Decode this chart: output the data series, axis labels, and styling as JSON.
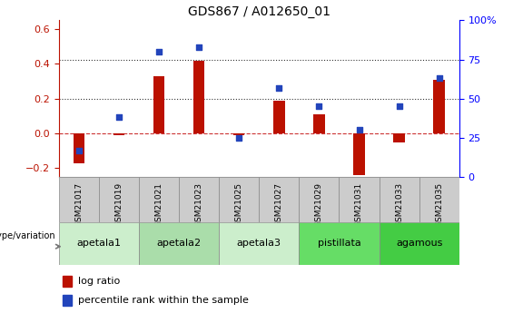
{
  "title": "GDS867 / A012650_01",
  "samples": [
    "GSM21017",
    "GSM21019",
    "GSM21021",
    "GSM21023",
    "GSM21025",
    "GSM21027",
    "GSM21029",
    "GSM21031",
    "GSM21033",
    "GSM21035"
  ],
  "log_ratio": [
    -0.17,
    -0.01,
    0.33,
    0.42,
    -0.01,
    0.19,
    0.11,
    -0.24,
    -0.05,
    0.31
  ],
  "percentile_rank_pct": [
    17,
    38,
    80,
    83,
    25,
    57,
    45,
    30,
    45,
    63
  ],
  "groups": [
    {
      "label": "apetala1",
      "start": 0,
      "end": 2,
      "color": "#cceecc"
    },
    {
      "label": "apetala2",
      "start": 2,
      "end": 4,
      "color": "#aaddaa"
    },
    {
      "label": "apetala3",
      "start": 4,
      "end": 6,
      "color": "#cceecc"
    },
    {
      "label": "pistillata",
      "start": 6,
      "end": 8,
      "color": "#66dd66"
    },
    {
      "label": "agamous",
      "start": 8,
      "end": 10,
      "color": "#44cc44"
    }
  ],
  "ylim_left": [
    -0.25,
    0.65
  ],
  "ylim_right": [
    0,
    100
  ],
  "yticks_left": [
    -0.2,
    0.0,
    0.2,
    0.4,
    0.6
  ],
  "yticks_right": [
    0,
    25,
    50,
    75,
    100
  ],
  "bar_color": "#bb1100",
  "scatter_color": "#2244bb",
  "hline_color": "#cc3333",
  "dotted_color": "#333333",
  "bg_color": "#ffffff",
  "sample_box_color": "#cccccc",
  "sample_box_edge": "#888888"
}
